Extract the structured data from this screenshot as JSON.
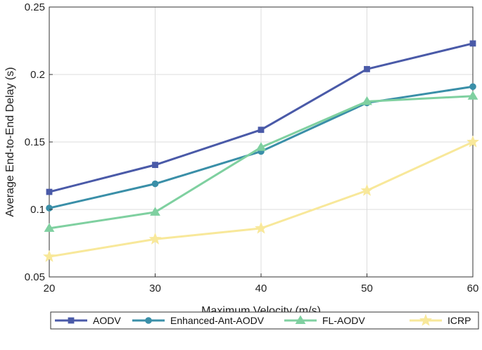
{
  "chart_data": {
    "type": "line",
    "title": "",
    "xlabel": "Maximum Velocity (m/s)",
    "ylabel": "Average End-to-End Delay (s)",
    "x": [
      20,
      30,
      40,
      50,
      60
    ],
    "xlim": [
      20,
      60
    ],
    "ylim": [
      0.05,
      0.25
    ],
    "xticks": [
      20,
      30,
      40,
      50,
      60
    ],
    "yticks": [
      0.05,
      0.1,
      0.15,
      0.2,
      0.25
    ],
    "xtick_labels": [
      "20",
      "30",
      "40",
      "50",
      "60"
    ],
    "ytick_labels": [
      "0.05",
      "0.1",
      "0.15",
      "0.2",
      "0.25"
    ],
    "grid": true,
    "legend_position": "bottom",
    "series": [
      {
        "name": "AODV",
        "values": [
          0.113,
          0.133,
          0.159,
          0.204,
          0.223
        ],
        "color": "#4a5aa8",
        "marker": "square"
      },
      {
        "name": "Enhanced-Ant-AODV",
        "values": [
          0.101,
          0.119,
          0.143,
          0.179,
          0.191
        ],
        "color": "#3a8fa8",
        "marker": "circle"
      },
      {
        "name": "FL-AODV",
        "values": [
          0.086,
          0.098,
          0.146,
          0.18,
          0.184
        ],
        "color": "#7fd0a0",
        "marker": "triangle"
      },
      {
        "name": "ICRP",
        "values": [
          0.065,
          0.078,
          0.086,
          0.114,
          0.15
        ],
        "color": "#f8e89a",
        "marker": "star"
      }
    ]
  }
}
